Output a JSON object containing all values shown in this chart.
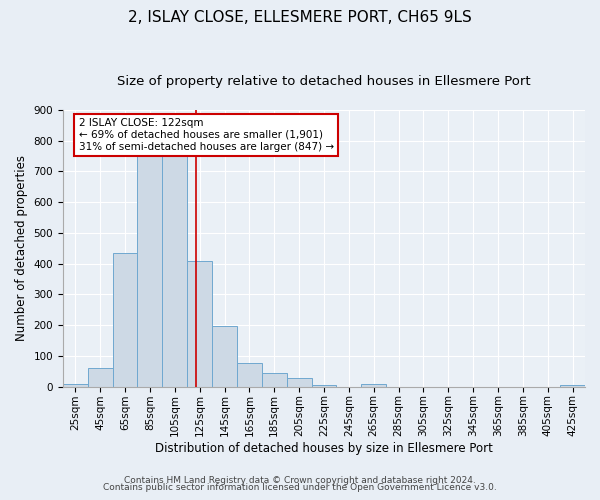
{
  "title": "2, ISLAY CLOSE, ELLESMERE PORT, CH65 9LS",
  "subtitle": "Size of property relative to detached houses in Ellesmere Port",
  "xlabel": "Distribution of detached houses by size in Ellesmere Port",
  "ylabel": "Number of detached properties",
  "bin_edges": [
    15,
    35,
    55,
    75,
    95,
    115,
    135,
    155,
    175,
    195,
    215,
    235,
    255,
    275,
    295,
    315,
    335,
    355,
    375,
    395,
    415,
    435
  ],
  "bar_heights": [
    10,
    60,
    435,
    750,
    750,
    410,
    197,
    77,
    45,
    28,
    5,
    0,
    10,
    0,
    0,
    0,
    0,
    0,
    0,
    0,
    5
  ],
  "bar_color": "#cdd9e5",
  "bar_edge_color": "#6fa8d0",
  "vline_x": 122,
  "vline_color": "#cc0000",
  "annotation_text_line1": "2 ISLAY CLOSE: 122sqm",
  "annotation_text_line2": "← 69% of detached houses are smaller (1,901)",
  "annotation_text_line3": "31% of semi-detached houses are larger (847) →",
  "annotation_box_color": "#cc0000",
  "ylim": [
    0,
    900
  ],
  "yticks": [
    0,
    100,
    200,
    300,
    400,
    500,
    600,
    700,
    800,
    900
  ],
  "xtick_labels": [
    "25sqm",
    "45sqm",
    "65sqm",
    "85sqm",
    "105sqm",
    "125sqm",
    "145sqm",
    "165sqm",
    "185sqm",
    "205sqm",
    "225sqm",
    "245sqm",
    "265sqm",
    "285sqm",
    "305sqm",
    "325sqm",
    "345sqm",
    "365sqm",
    "385sqm",
    "405sqm",
    "425sqm"
  ],
  "xtick_positions": [
    25,
    45,
    65,
    85,
    105,
    125,
    145,
    165,
    185,
    205,
    225,
    245,
    265,
    285,
    305,
    325,
    345,
    365,
    385,
    405,
    425
  ],
  "footer_line1": "Contains HM Land Registry data © Crown copyright and database right 2024.",
  "footer_line2": "Contains public sector information licensed under the Open Government Licence v3.0.",
  "bg_color": "#e8eef5",
  "plot_bg_color": "#eaf0f6",
  "title_fontsize": 11,
  "subtitle_fontsize": 9.5,
  "axis_label_fontsize": 8.5,
  "tick_fontsize": 7.5,
  "annotation_fontsize": 7.5,
  "footer_fontsize": 6.5
}
